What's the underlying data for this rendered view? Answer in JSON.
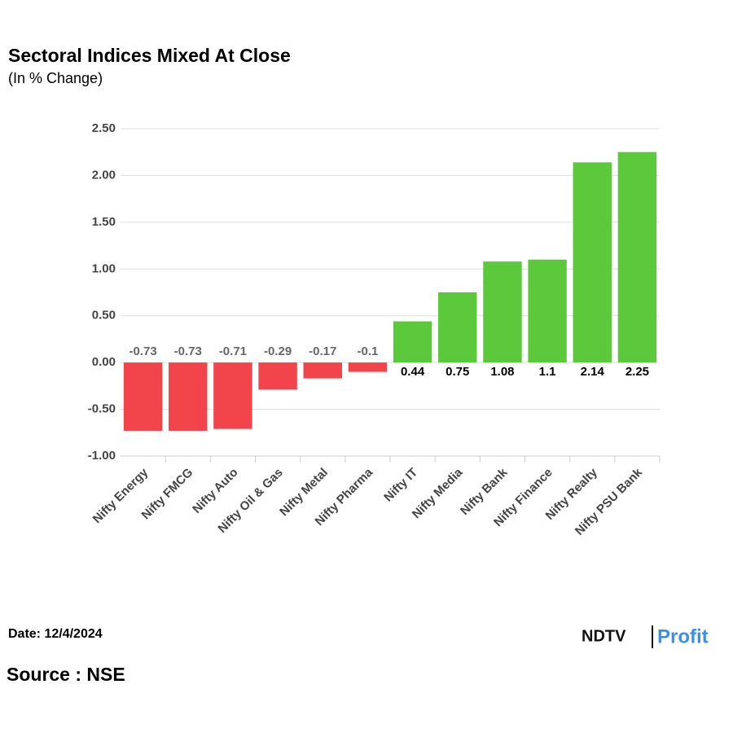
{
  "chart_data": {
    "type": "bar",
    "title": "Sectoral Indices Mixed At Close",
    "subtitle": "(In % Change)",
    "categories": [
      "Nifty Energy",
      "Nifty FMCG",
      "Nifty Auto",
      "Nifty Oil & Gas",
      "Nifty Metal",
      "Nifty Pharma",
      "Nifty IT",
      "Nifty Media",
      "Nifty Bank",
      "Nifty Finance",
      "Nifty Realty",
      "Nifty PSU Bank"
    ],
    "values": [
      -0.73,
      -0.73,
      -0.71,
      -0.29,
      -0.17,
      -0.1,
      0.44,
      0.75,
      1.08,
      1.1,
      2.14,
      2.25
    ],
    "colors": [
      "#f2444b",
      "#f2444b",
      "#f2444b",
      "#f2444b",
      "#f2444b",
      "#f2444b",
      "#5cc93d",
      "#5cc93d",
      "#5cc93d",
      "#5cc93d",
      "#5cc93d",
      "#5cc93d"
    ],
    "ylim": [
      -1,
      2.5
    ],
    "yticks": [
      {
        "value": -1,
        "label": "-1.00"
      },
      {
        "value": -0.5,
        "label": "-0.50"
      },
      {
        "value": 0,
        "label": "0.00"
      },
      {
        "value": 0.5,
        "label": "0.50"
      },
      {
        "value": 1,
        "label": "1.00"
      },
      {
        "value": 1.5,
        "label": "1.50"
      },
      {
        "value": 2,
        "label": "2.00"
      },
      {
        "value": 2.5,
        "label": "2.50"
      }
    ],
    "grid": true
  },
  "footer": {
    "date": "Date: 12/4/2024",
    "source": "Source : NSE",
    "logo": {
      "brand": "NDTV",
      "product": "Profit"
    }
  }
}
